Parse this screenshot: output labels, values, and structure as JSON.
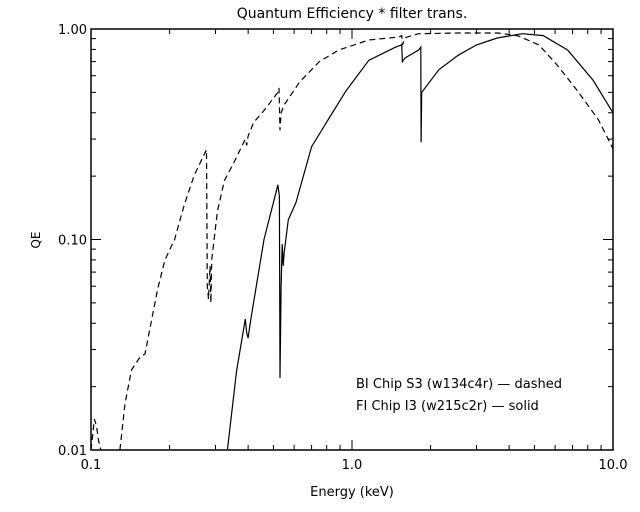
{
  "chart_data": {
    "type": "line",
    "title": "Quantum Efficiency * filter trans.",
    "xlabel": "Energy (keV)",
    "ylabel": "QE",
    "xscale": "log",
    "yscale": "log",
    "xlim": [
      0.1,
      10.0
    ],
    "ylim": [
      0.01,
      1.0
    ],
    "xticks": [
      {
        "v": 0.1,
        "label": "0.1"
      },
      {
        "v": 1.0,
        "label": "1.0"
      },
      {
        "v": 10.0,
        "label": "10.0"
      }
    ],
    "yticks": [
      {
        "v": 0.01,
        "label": "0.01"
      },
      {
        "v": 0.1,
        "label": "0.10"
      },
      {
        "v": 1.0,
        "label": "1.00"
      }
    ],
    "grid": false,
    "legend_position": "bottom-right",
    "legend": [
      "BI Chip S3 (w134c4r) — dashed",
      "FI Chip I3 (w215c2r) — solid"
    ],
    "series": [
      {
        "name": "BI Chip S3 (w134c4r)",
        "style": "dashed",
        "segments": [
          [
            [
              0.1,
              0.01
            ],
            [
              0.103,
              0.014
            ],
            [
              0.105,
              0.013
            ],
            [
              0.107,
              0.011
            ],
            [
              0.109,
              0.01
            ]
          ],
          [
            [
              0.129,
              0.01
            ],
            [
              0.135,
              0.0166
            ],
            [
              0.143,
              0.024
            ],
            [
              0.154,
              0.0276
            ],
            [
              0.161,
              0.0286
            ],
            [
              0.168,
              0.0375
            ],
            [
              0.18,
              0.058
            ],
            [
              0.192,
              0.08
            ],
            [
              0.209,
              0.1
            ],
            [
              0.228,
              0.147
            ],
            [
              0.249,
              0.203
            ],
            [
              0.277,
              0.267
            ],
            [
              0.279,
              0.06
            ],
            [
              0.282,
              0.052
            ],
            [
              0.286,
              0.075
            ],
            [
              0.288,
              0.05
            ],
            [
              0.29,
              0.08
            ],
            [
              0.305,
              0.136
            ],
            [
              0.324,
              0.19
            ],
            [
              0.354,
              0.234
            ],
            [
              0.39,
              0.3
            ],
            [
              0.395,
              0.28
            ],
            [
              0.4,
              0.31
            ],
            [
              0.42,
              0.36
            ],
            [
              0.46,
              0.41
            ],
            [
              0.52,
              0.5
            ],
            [
              0.525,
              0.525
            ],
            [
              0.53,
              0.33
            ],
            [
              0.535,
              0.4
            ],
            [
              0.55,
              0.436
            ],
            [
              0.63,
              0.56
            ],
            [
              0.75,
              0.7
            ],
            [
              0.89,
              0.795
            ],
            [
              1.16,
              0.887
            ],
            [
              1.51,
              0.916
            ],
            [
              1.55,
              0.93
            ],
            [
              1.56,
              0.84
            ],
            [
              1.6,
              0.91
            ],
            [
              1.8,
              0.95
            ],
            [
              2.55,
              0.957
            ],
            [
              3.63,
              0.957
            ],
            [
              4.33,
              0.927
            ],
            [
              5.2,
              0.84
            ],
            [
              6.1,
              0.675
            ],
            [
              7.3,
              0.51
            ],
            [
              8.8,
              0.37
            ],
            [
              10.0,
              0.27
            ]
          ]
        ]
      },
      {
        "name": "FI Chip I3 (w215c2r)",
        "style": "solid",
        "segments": [
          [
            [
              0.333,
              0.01
            ],
            [
              0.361,
              0.0236
            ],
            [
              0.39,
              0.0419
            ],
            [
              0.395,
              0.036
            ],
            [
              0.4,
              0.034
            ],
            [
              0.41,
              0.042
            ],
            [
              0.46,
              0.1
            ],
            [
              0.52,
              0.182
            ],
            [
              0.527,
              0.16
            ],
            [
              0.53,
              0.022
            ],
            [
              0.535,
              0.06
            ],
            [
              0.54,
              0.095
            ],
            [
              0.545,
              0.075
            ],
            [
              0.55,
              0.087
            ],
            [
              0.57,
              0.124
            ],
            [
              0.61,
              0.15
            ],
            [
              0.7,
              0.276
            ],
            [
              0.82,
              0.38
            ],
            [
              0.95,
              0.51
            ],
            [
              1.16,
              0.71
            ],
            [
              1.47,
              0.82
            ],
            [
              1.55,
              0.84
            ],
            [
              1.56,
              0.7
            ],
            [
              1.6,
              0.73
            ],
            [
              1.8,
              0.795
            ],
            [
              1.835,
              0.82
            ],
            [
              1.84,
              0.29
            ],
            [
              1.85,
              0.5
            ],
            [
              2.15,
              0.64
            ],
            [
              2.55,
              0.75
            ],
            [
              3.0,
              0.84
            ],
            [
              3.6,
              0.906
            ],
            [
              4.5,
              0.95
            ],
            [
              5.4,
              0.93
            ],
            [
              6.7,
              0.795
            ],
            [
              8.4,
              0.57
            ],
            [
              10.0,
              0.4
            ]
          ]
        ]
      }
    ]
  }
}
